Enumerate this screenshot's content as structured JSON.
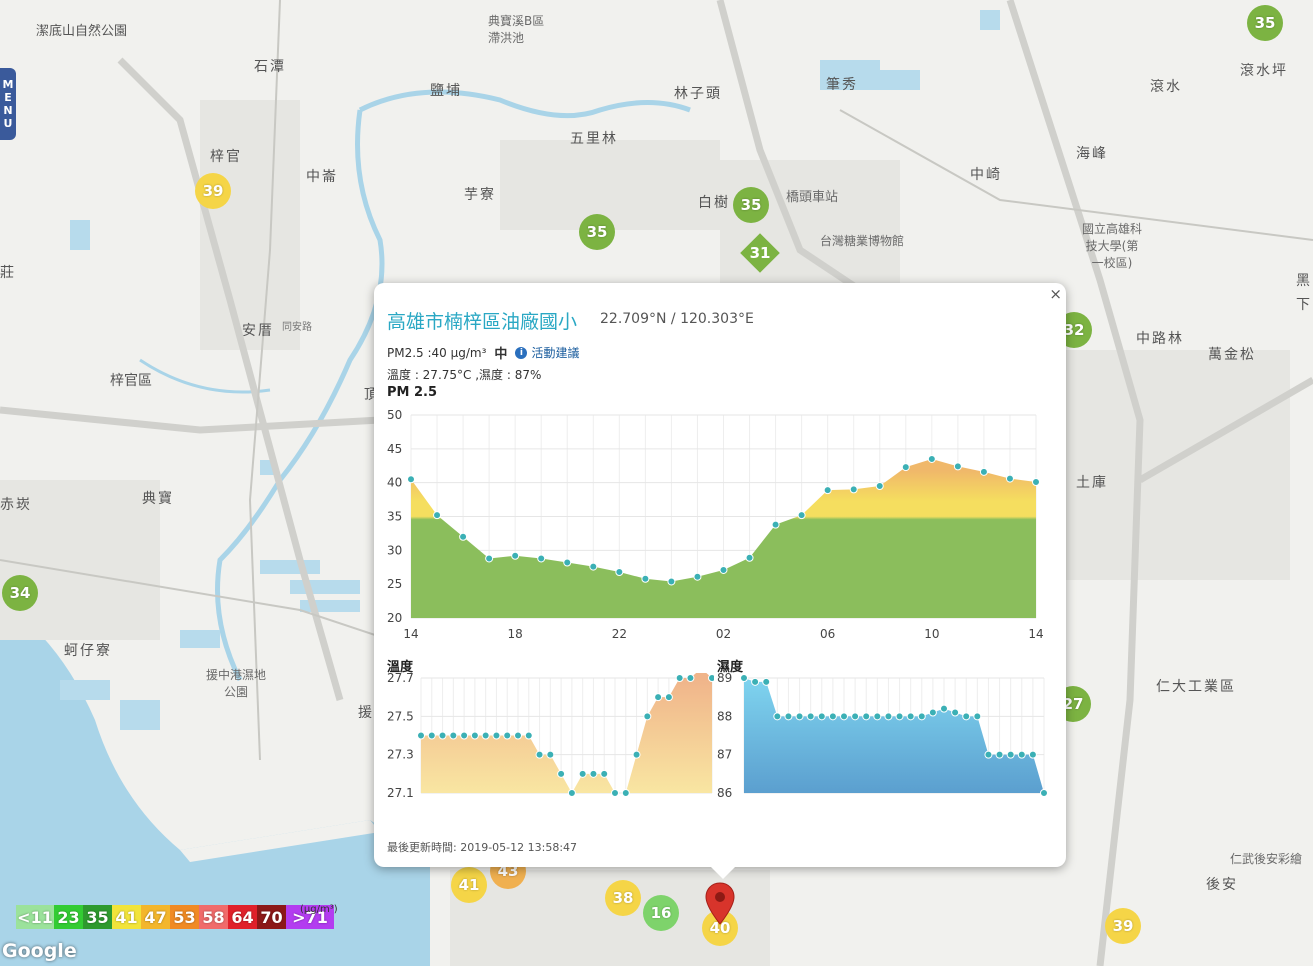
{
  "menu": {
    "label": "MENU",
    "letters": [
      "M",
      "E",
      "N",
      "U"
    ]
  },
  "map": {
    "labels": [
      "潔底山自然公園",
      "石潭",
      "鹽埔",
      "典寶溪B區滯洪池",
      "林子頭",
      "筆秀",
      "滾水",
      "滾水坪",
      "梓官",
      "中崙",
      "五里林",
      "芋寮",
      "白樹",
      "橋頭車站",
      "中崎",
      "海峰",
      "國立高雄科技大學(第一校區)",
      "台灣糖業博物館",
      "安厝",
      "同安路",
      "梓官區",
      "頂",
      "典寶",
      "赤崁",
      "蚵仔寮",
      "援中港濕地公園",
      "中路林",
      "萬金松",
      "土庫",
      "仁大工業區",
      "後安",
      "仁武後安彩繪",
      "黑",
      "下",
      "莊",
      "援"
    ],
    "markers": [
      {
        "value": "35",
        "color": "#7cb342"
      },
      {
        "value": "39",
        "color": "#f5d547"
      },
      {
        "value": "35",
        "color": "#7cb342"
      },
      {
        "value": "35",
        "color": "#7cb342"
      },
      {
        "value": "31",
        "color": "#7cb342"
      },
      {
        "value": "32",
        "color": "#7cb342"
      },
      {
        "value": "34",
        "color": "#7cb342"
      },
      {
        "value": "27",
        "color": "#7cb342"
      },
      {
        "value": "41",
        "color": "#f5d547"
      },
      {
        "value": "43",
        "color": "#f0b050"
      },
      {
        "value": "38",
        "color": "#f5d547"
      },
      {
        "value": "16",
        "color": "#7ed36b"
      },
      {
        "value": "40",
        "color": "#f5d547"
      },
      {
        "value": "39",
        "color": "#f5d547"
      }
    ]
  },
  "legend": {
    "unit": "(μg/m³)",
    "items": [
      {
        "label": "<11",
        "color": "#9be29b"
      },
      {
        "label": "23",
        "color": "#33cc33"
      },
      {
        "label": "35",
        "color": "#2e9a2e"
      },
      {
        "label": "41",
        "color": "#f2e43a"
      },
      {
        "label": "47",
        "color": "#f3b62c"
      },
      {
        "label": "53",
        "color": "#f08a24"
      },
      {
        "label": "58",
        "color": "#f06b6b"
      },
      {
        "label": "64",
        "color": "#e0202a"
      },
      {
        "label": "70",
        "color": "#8c1818"
      },
      {
        "label": ">71",
        "color": "#b33cf0"
      }
    ]
  },
  "google": "Google",
  "popup": {
    "close": "×",
    "title": "高雄市楠梓區油廠國小",
    "coords": "22.709°N / 120.303°E",
    "pm_text": "PM2.5 :40 μg/m³",
    "pm_level": "中",
    "info_icon": "i",
    "advice": "活動建議",
    "temp_humidity": "溫度 : 27.75°C ,濕度 : 87%",
    "pm_heading": "PM 2.5",
    "temp_heading": "溫度",
    "humidity_heading": "濕度",
    "updated": "最後更新時間: 2019-05-12 13:58:47"
  },
  "chart_data": [
    {
      "type": "area",
      "title": "PM 2.5",
      "ylim": [
        20,
        50
      ],
      "yticks": [
        20,
        25,
        30,
        35,
        40,
        45,
        50
      ],
      "xticks": [
        {
          "label": "14",
          "index": 0
        },
        {
          "label": "18",
          "index": 4
        },
        {
          "label": "22",
          "index": 8
        },
        {
          "label": "02",
          "index": 12
        },
        {
          "label": "06",
          "index": 16
        },
        {
          "label": "10",
          "index": 20
        },
        {
          "label": "14",
          "index": 24
        }
      ],
      "values": [
        40.5,
        35.2,
        32,
        28.8,
        29.2,
        28.8,
        28.2,
        27.6,
        26.8,
        25.8,
        25.4,
        26.1,
        27.1,
        28.9,
        33.8,
        35.2,
        38.9,
        39,
        39.5,
        42.3,
        43.5,
        42.4,
        41.6,
        40.6,
        40.1
      ],
      "threshold": 35,
      "colors": {
        "below": "#8bbe5c",
        "above": "#f5de5f",
        "peak": "#f0b86a",
        "point": "#3bb0b5"
      },
      "grid": true
    },
    {
      "type": "area",
      "title": "溫度",
      "ylim": [
        27.1,
        27.7
      ],
      "yticks": [
        27.1,
        27.3,
        27.5,
        27.7
      ],
      "values": [
        27.4,
        27.4,
        27.4,
        27.4,
        27.4,
        27.4,
        27.4,
        27.4,
        27.4,
        27.4,
        27.4,
        27.3,
        27.3,
        27.2,
        27.1,
        27.2,
        27.2,
        27.2,
        27.1,
        27.1,
        27.3,
        27.5,
        27.6,
        27.6,
        27.7,
        27.7,
        27.75,
        27.7
      ],
      "colors": {
        "top": "#f0b48a",
        "bottom": "#f9e6a2",
        "point": "#3bb0b5"
      },
      "grid": true
    },
    {
      "type": "area",
      "title": "濕度",
      "ylim": [
        86,
        89
      ],
      "yticks": [
        86,
        87,
        88,
        89
      ],
      "values": [
        89,
        88.9,
        88.9,
        88,
        88,
        88,
        88,
        88,
        88,
        88,
        88,
        88,
        88,
        88,
        88,
        88,
        88,
        88.1,
        88.2,
        88.1,
        88,
        88,
        87,
        87,
        87,
        87,
        87,
        86
      ],
      "colors": {
        "top": "#7fd4ef",
        "bottom": "#5b9fcf",
        "point": "#3bb0b5"
      },
      "grid": true
    }
  ]
}
